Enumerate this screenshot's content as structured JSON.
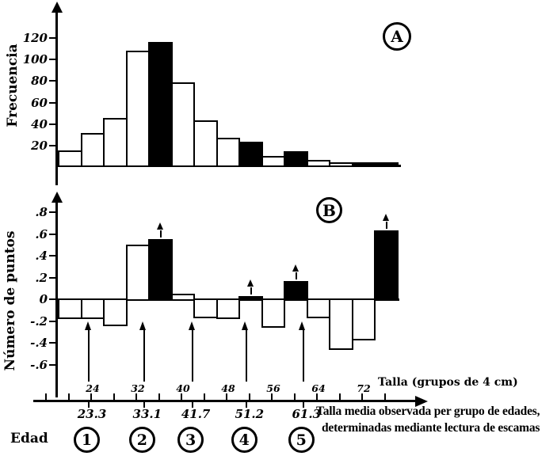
{
  "figure": {
    "background": "#ffffff",
    "ink": "#000000"
  },
  "panel_a": {
    "badge": "A",
    "ylabel": "Frecuencia",
    "yticks": [
      {
        "value": 120,
        "label": "120"
      },
      {
        "value": 100,
        "label": "100"
      },
      {
        "value": 80,
        "label": "80"
      },
      {
        "value": 60,
        "label": "60"
      },
      {
        "value": 40,
        "label": "40"
      },
      {
        "value": 20,
        "label": "20"
      }
    ]
  },
  "panel_b": {
    "badge": "B",
    "ylabel": "Número de puntos",
    "yticks": [
      {
        "value": 0.8,
        "label": ".8"
      },
      {
        "value": 0.6,
        "label": ".6"
      },
      {
        "value": 0.4,
        "label": ".4"
      },
      {
        "value": 0.2,
        "label": ".2"
      },
      {
        "value": 0,
        "label": "0"
      },
      {
        "value": -0.2,
        "label": "-.2"
      },
      {
        "value": -0.4,
        "label": "-.4"
      },
      {
        "value": -0.6,
        "label": "-.6"
      }
    ]
  },
  "x_axis": {
    "label": "Talla (grupos de 4 cm)",
    "ticks": [
      {
        "value": 24,
        "label": "24"
      },
      {
        "value": 32,
        "label": "32"
      },
      {
        "value": 40,
        "label": "40"
      },
      {
        "value": 48,
        "label": "48"
      },
      {
        "value": 56,
        "label": "56"
      },
      {
        "value": 64,
        "label": "64"
      },
      {
        "value": 72,
        "label": "72"
      }
    ]
  },
  "age_axis": {
    "label": "Edad",
    "groups": [
      {
        "number": "1",
        "mean_length": 23.3,
        "mean_label": "23.3"
      },
      {
        "number": "2",
        "mean_length": 33.1,
        "mean_label": "33.1"
      },
      {
        "number": "3",
        "mean_length": 41.7,
        "mean_label": "41.7"
      },
      {
        "number": "4",
        "mean_length": 51.2,
        "mean_label": "51.2"
      },
      {
        "number": "5",
        "mean_length": 61.3,
        "mean_label": "61.3"
      }
    ]
  },
  "caption": {
    "line1": "Talla media observada per grupo de edades,",
    "line2": "determinadas mediante lectura de escamas"
  },
  "chart_data": [
    {
      "type": "bar",
      "panel": "A",
      "title": "A",
      "ylabel": "Frecuencia",
      "xlabel": "Talla (grupos de 4 cm)",
      "bin_width_cm": 4,
      "bin_centers_cm": [
        20,
        24,
        28,
        32,
        36,
        40,
        44,
        48,
        52,
        56,
        60,
        64,
        68,
        72,
        76
      ],
      "values": [
        14,
        30,
        44,
        107,
        115,
        77,
        42,
        26,
        22,
        9,
        13,
        5,
        3,
        3,
        3
      ],
      "filled": [
        false,
        false,
        false,
        false,
        true,
        false,
        false,
        false,
        true,
        false,
        true,
        false,
        false,
        true,
        true
      ],
      "yticks": [
        20,
        40,
        60,
        80,
        100,
        120
      ],
      "ylim": [
        0,
        130
      ],
      "grid": false,
      "legend": "none"
    },
    {
      "type": "bar",
      "panel": "B",
      "title": "B",
      "ylabel": "Número de puntos",
      "xlabel": "Talla (grupos de 4 cm)",
      "bin_width_cm": 4,
      "bin_centers_cm": [
        20,
        24,
        28,
        32,
        36,
        40,
        44,
        48,
        52,
        56,
        60,
        64,
        68,
        72,
        76
      ],
      "values": [
        -0.17,
        -0.17,
        -0.23,
        0.5,
        0.55,
        0.05,
        -0.16,
        -0.17,
        0.03,
        -0.25,
        0.17,
        -0.16,
        -0.45,
        -0.36,
        0.63
      ],
      "filled": [
        false,
        false,
        false,
        false,
        true,
        false,
        false,
        false,
        true,
        false,
        true,
        false,
        false,
        false,
        true
      ],
      "arrow_marked_bins": [
        4,
        8,
        10,
        14
      ],
      "mean_length_arrows_cm": [
        23.3,
        33.1,
        41.7,
        51.2,
        61.3
      ],
      "yticks": [
        -0.6,
        -0.4,
        -0.2,
        0,
        0.2,
        0.4,
        0.6,
        0.8
      ],
      "ylim": [
        -0.7,
        0.9
      ],
      "grid": false,
      "legend": "none"
    }
  ]
}
